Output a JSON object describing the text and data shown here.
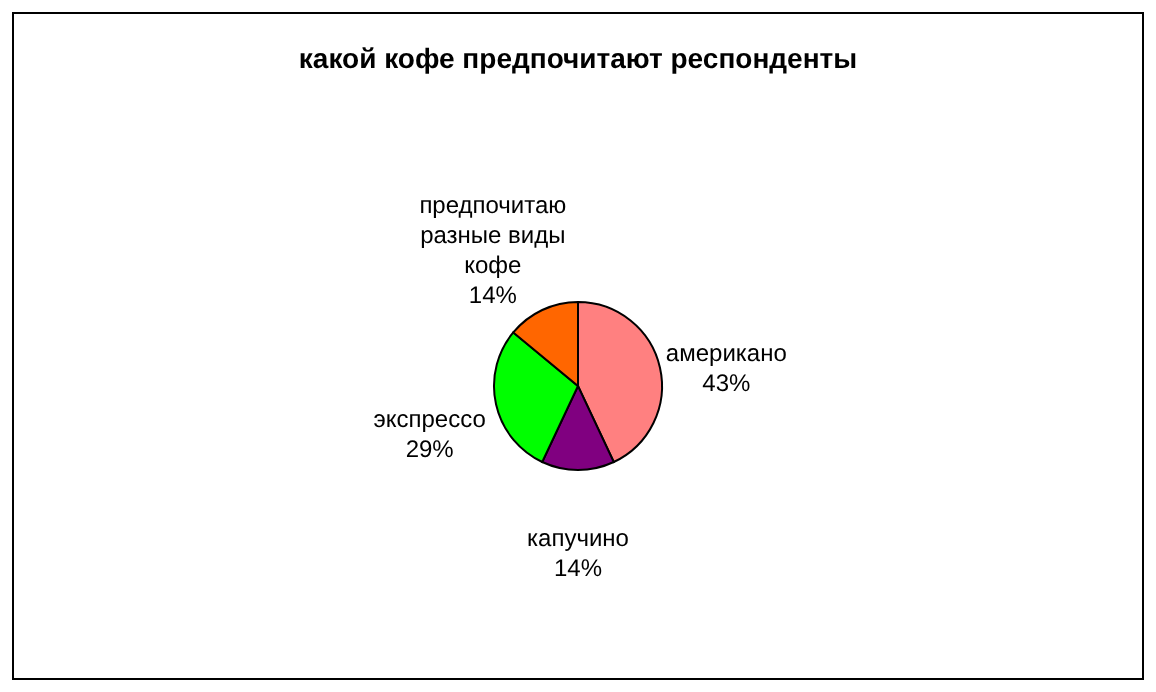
{
  "chart_data": {
    "type": "pie",
    "title": "какой кофе предпочитают респонденты",
    "categories": [
      "американо",
      "капучино",
      "экспрессо",
      "предпочитаю разные виды кофе"
    ],
    "values": [
      43,
      14,
      29,
      14
    ],
    "colors": [
      "#ff8080",
      "#800080",
      "#00ff00",
      "#ff6600"
    ],
    "value_labels": [
      "43%",
      "14%",
      "29%",
      "14%"
    ]
  }
}
